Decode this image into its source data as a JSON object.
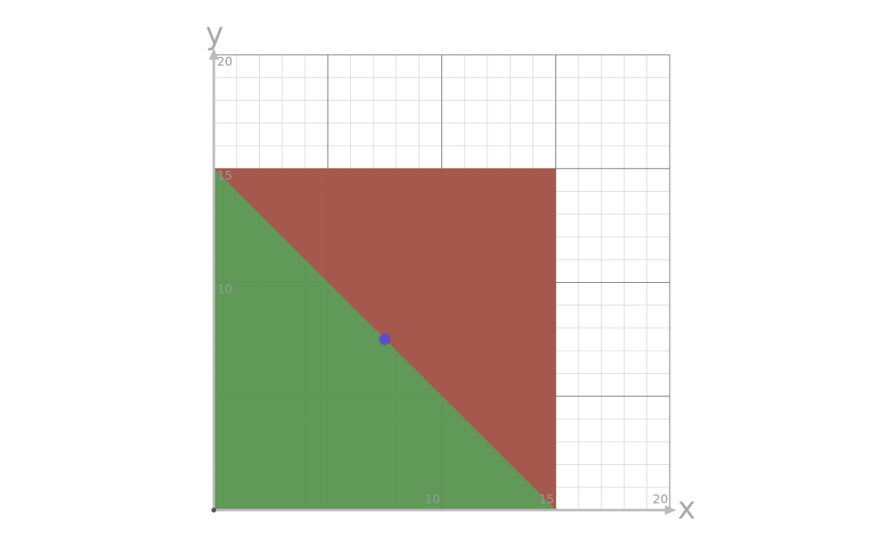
{
  "chart_data": {
    "type": "region",
    "xlabel": "x",
    "ylabel": "y",
    "xlim": [
      0,
      20
    ],
    "ylim": [
      0,
      20
    ],
    "xticks": [
      10,
      15,
      20
    ],
    "yticks": [
      10,
      15,
      20
    ],
    "grid": true,
    "grid_step": 5,
    "minor_grid_step": 1,
    "regions": [
      {
        "color": "#5b9653",
        "x": [
          0,
          15,
          0
        ],
        "y": [
          0,
          0,
          15
        ]
      },
      {
        "color": "#a35346",
        "x": [
          0,
          15,
          15
        ],
        "y": [
          15,
          15,
          0
        ]
      }
    ],
    "points": [
      {
        "color": "#5b4fc9",
        "x": 7.5,
        "y": 7.5
      }
    ]
  }
}
